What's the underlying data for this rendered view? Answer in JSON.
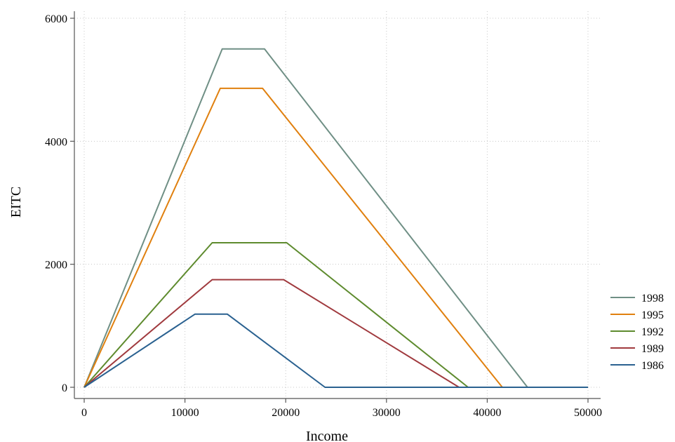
{
  "chart_data": {
    "type": "line",
    "title": "",
    "xlabel": "Income",
    "ylabel": "EITC",
    "xlim": [
      0,
      50000
    ],
    "ylim": [
      0,
      6000
    ],
    "xticks": [
      0,
      10000,
      20000,
      30000,
      40000,
      50000
    ],
    "xtick_labels": [
      "0",
      "10000",
      "20000",
      "30000",
      "40000",
      "50000"
    ],
    "yticks": [
      0,
      2000,
      4000,
      6000
    ],
    "ytick_labels": [
      "0",
      "2000",
      "4000",
      "6000"
    ],
    "grid": true,
    "legend_position": "right",
    "series": [
      {
        "name": "1998",
        "color": "#6f8f85",
        "x": [
          0,
          13700,
          17900,
          44000,
          50000
        ],
        "y": [
          0,
          5500,
          5500,
          0,
          0
        ]
      },
      {
        "name": "1995",
        "color": "#e0800f",
        "x": [
          0,
          13500,
          17700,
          41500,
          50000
        ],
        "y": [
          0,
          4860,
          4860,
          0,
          0
        ]
      },
      {
        "name": "1992",
        "color": "#5e8b2e",
        "x": [
          0,
          12700,
          20100,
          38100,
          50000
        ],
        "y": [
          0,
          2350,
          2350,
          0,
          0
        ]
      },
      {
        "name": "1989",
        "color": "#a03a3e",
        "x": [
          0,
          12700,
          19800,
          37200,
          50000
        ],
        "y": [
          0,
          1750,
          1750,
          0,
          0
        ]
      },
      {
        "name": "1986",
        "color": "#2a6190",
        "x": [
          0,
          11000,
          14200,
          23900,
          50000
        ],
        "y": [
          0,
          1190,
          1190,
          0,
          0
        ]
      }
    ]
  }
}
